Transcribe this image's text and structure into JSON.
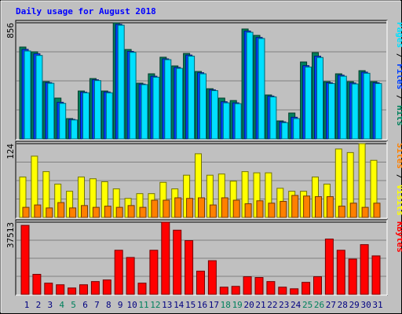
{
  "title": "Daily usage for August 2018",
  "legend_separator": " / ",
  "chart_data": [
    {
      "type": "bar",
      "ylim": [
        0,
        856
      ],
      "yticks": [
        856
      ],
      "grid_divisions": 4,
      "series": [
        {
          "name": "Hits",
          "color": "#00805c",
          "values": [
            677,
            642,
            422,
            301,
            150,
            353,
            445,
            353,
            856,
            659,
            411,
            480,
            602,
            538,
            630,
            497,
            370,
            301,
            283,
            810,
            763,
            324,
            133,
            191,
            567,
            636,
            422,
            480,
            422,
            503,
            422
          ]
        },
        {
          "name": "Files",
          "color": "#0040ff",
          "values": [
            660,
            628,
            415,
            270,
            144,
            345,
            436,
            346,
            845,
            645,
            404,
            462,
            590,
            527,
            618,
            488,
            362,
            274,
            266,
            795,
            748,
            316,
            126,
            160,
            540,
            610,
            414,
            470,
            412,
            492,
            414
          ]
        },
        {
          "name": "Pages",
          "color": "#00e0ff",
          "values": [
            648,
            615,
            410,
            262,
            140,
            340,
            430,
            340,
            838,
            638,
            400,
            455,
            584,
            520,
            610,
            480,
            356,
            266,
            260,
            786,
            740,
            310,
            120,
            150,
            530,
            600,
            408,
            462,
            405,
            484,
            408
          ]
        }
      ]
    },
    {
      "type": "bar",
      "ylim": [
        0,
        124
      ],
      "yticks": [
        124
      ],
      "grid_divisions": 4,
      "series": [
        {
          "name": "Visits",
          "color": "#ffff00",
          "values": [
            68,
            103,
            77,
            56,
            44,
            68,
            65,
            60,
            48,
            32,
            40,
            40,
            59,
            48,
            71,
            107,
            71,
            73,
            61,
            77,
            75,
            75,
            49,
            44,
            44,
            68,
            56,
            115,
            109,
            124,
            96
          ]
        },
        {
          "name": "Sites",
          "color": "#ff8000",
          "values": [
            17,
            21,
            16,
            25,
            16,
            20,
            17,
            19,
            17,
            20,
            17,
            29,
            29,
            33,
            32,
            33,
            21,
            33,
            29,
            23,
            28,
            24,
            27,
            37,
            36,
            35,
            35,
            19,
            24,
            17,
            24
          ]
        }
      ]
    },
    {
      "type": "bar",
      "ylim": [
        0,
        37513
      ],
      "yticks": [
        37513
      ],
      "grid_divisions": 4,
      "categories": [
        "1",
        "2",
        "3",
        "4",
        "5",
        "6",
        "7",
        "8",
        "9",
        "10",
        "11",
        "12",
        "13",
        "14",
        "15",
        "16",
        "17",
        "18",
        "19",
        "20",
        "21",
        "22",
        "23",
        "24",
        "25",
        "26",
        "27",
        "28",
        "29",
        "30",
        "31"
      ],
      "category_colors": [
        "#000080",
        "#000080",
        "#000080",
        "#00805c",
        "#00805c",
        "#000080",
        "#000080",
        "#000080",
        "#000080",
        "#000080",
        "#00805c",
        "#00805c",
        "#000080",
        "#000080",
        "#000080",
        "#000080",
        "#000080",
        "#00805c",
        "#00805c",
        "#000080",
        "#000080",
        "#000080",
        "#000080",
        "#000080",
        "#00805c",
        "#00805c",
        "#000080",
        "#000080",
        "#000080",
        "#000080",
        "#000080"
      ],
      "series": [
        {
          "name": "KBytes",
          "color": "#ff0000",
          "values": [
            35845,
            10420,
            5835,
            5002,
            3334,
            5002,
            6669,
            7502,
            22924,
            19173,
            5835,
            22924,
            37513,
            33344,
            27926,
            12087,
            17506,
            3751,
            4168,
            9170,
            8753,
            6669,
            3751,
            2918,
            6252,
            9170,
            28759,
            22924,
            18339,
            25842,
            20006
          ]
        }
      ]
    }
  ]
}
